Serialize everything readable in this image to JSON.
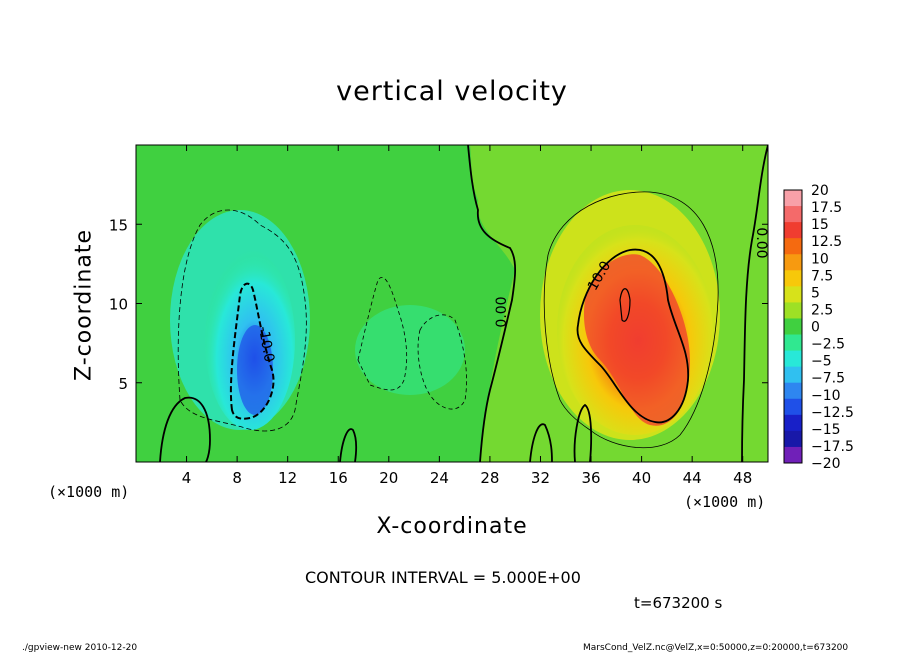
{
  "chart_data": {
    "type": "heatmap",
    "title": "vertical velocity",
    "xlabel": "X-coordinate",
    "ylabel": "Z-coordinate",
    "x_unit": "(×1000 m)",
    "xlim": [
      0,
      50
    ],
    "ylim": [
      0,
      20
    ],
    "x_ticks": [
      "4",
      "8",
      "12",
      "16",
      "20",
      "24",
      "28",
      "32",
      "36",
      "40",
      "44",
      "48"
    ],
    "y_ticks": [
      "5",
      "10",
      "15"
    ],
    "colorbar": {
      "levels": [
        "20",
        "17.5",
        "15",
        "12.5",
        "10",
        "7.5",
        "5",
        "2.5",
        "0",
        "−2.5",
        "−5",
        "−7.5",
        "−10",
        "−12.5",
        "−15",
        "−17.5",
        "−20"
      ],
      "colors": [
        "#f8a0a8",
        "#f46a6a",
        "#f03d30",
        "#f56a10",
        "#f79a10",
        "#f7c80a",
        "#d7e21a",
        "#9ee025",
        "#40d040",
        "#30e890",
        "#28e8d8",
        "#30c0f0",
        "#2e86f0",
        "#1f50e8",
        "#1820c8",
        "#1818a8",
        "#7020b8"
      ]
    },
    "contour_labels": [
      "10.0",
      "-10.0",
      "0.00",
      "0.00"
    ],
    "contour_interval": "CONTOUR INTERVAL = 5.000E+00",
    "features": [
      {
        "kind": "updraft",
        "x": 39.5,
        "z": 8.5,
        "max": 18
      },
      {
        "kind": "downdraft",
        "x": 9,
        "z": 7.5,
        "min": -14
      }
    ]
  },
  "annotations": {
    "x_unit_left": "(×1000 m)",
    "x_unit_right": "(×1000 m)",
    "time": "t=673200 s",
    "footer_left": "./gpview-new   2010-12-20",
    "footer_right": "MarsCond_VelZ.nc@VelZ,x=0:50000,z=0:20000,t=673200"
  }
}
